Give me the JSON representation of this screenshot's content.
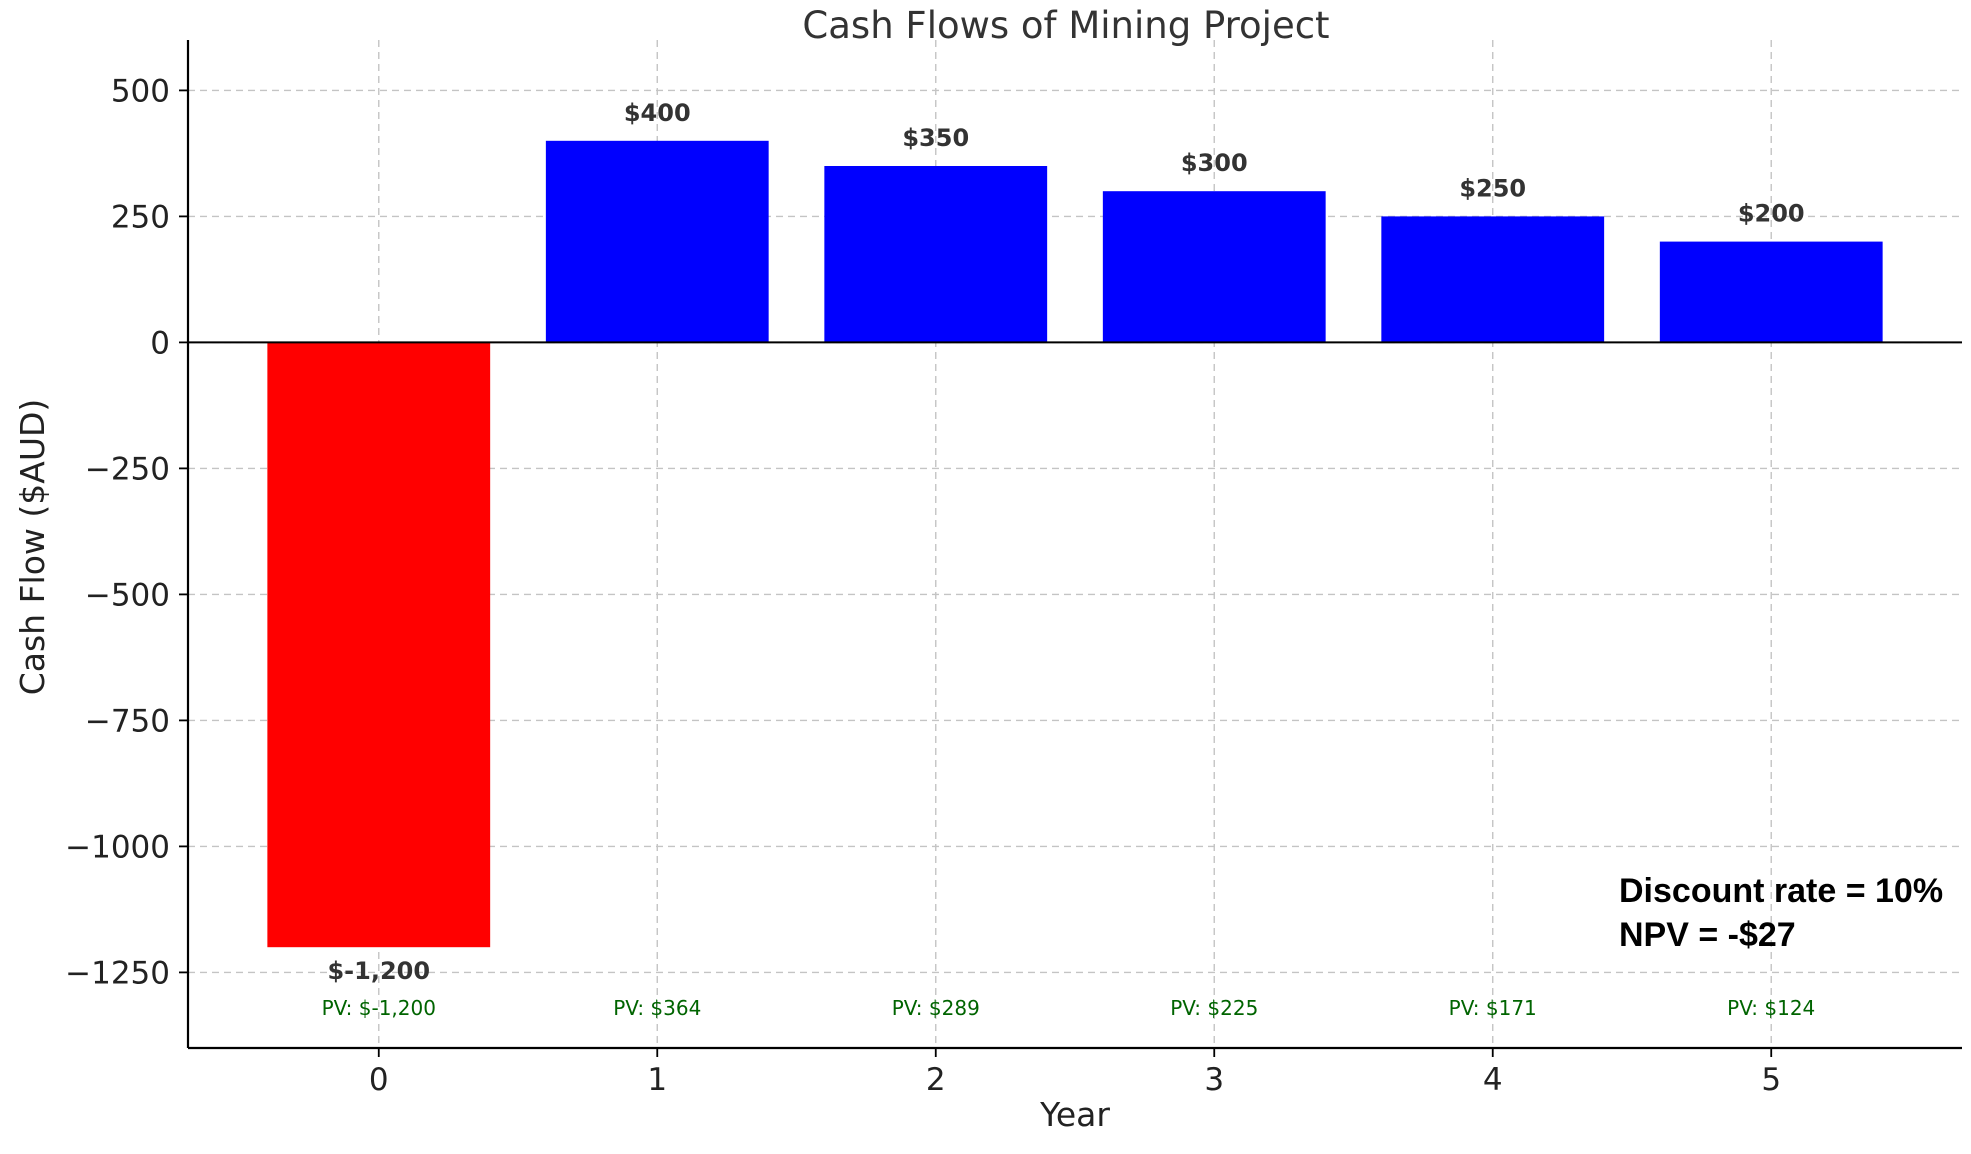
{
  "chart_data": {
    "type": "bar",
    "title": "Cash Flows of Mining Project",
    "xlabel": "Year",
    "ylabel": "Cash Flow ($AUD)",
    "categories": [
      "0",
      "1",
      "2",
      "3",
      "4",
      "5"
    ],
    "values": [
      -1200,
      400,
      350,
      300,
      250,
      200
    ],
    "value_labels": [
      "$-1,200",
      "$400",
      "$350",
      "$300",
      "$250",
      "$200"
    ],
    "pv_labels": [
      "PV: $-1,200",
      "PV: $364",
      "PV: $289",
      "PV: $225",
      "PV: $171",
      "PV: $124"
    ],
    "bar_colors": [
      "#ff0000",
      "#0000ff",
      "#0000ff",
      "#0000ff",
      "#0000ff",
      "#0000ff"
    ],
    "pv_color": "#006400",
    "ylim": [
      -1400,
      600
    ],
    "xlim": [
      -0.685,
      5.685
    ],
    "yticks": [
      500,
      250,
      0,
      -250,
      -500,
      -750,
      -1000,
      -1250
    ],
    "ytick_labels": [
      "500",
      "250",
      "0",
      "−250",
      "−500",
      "−750",
      "−1000",
      "−1250"
    ],
    "grid": true,
    "annotations": [
      "Discount rate = 10%",
      "NPV = -$27"
    ]
  }
}
